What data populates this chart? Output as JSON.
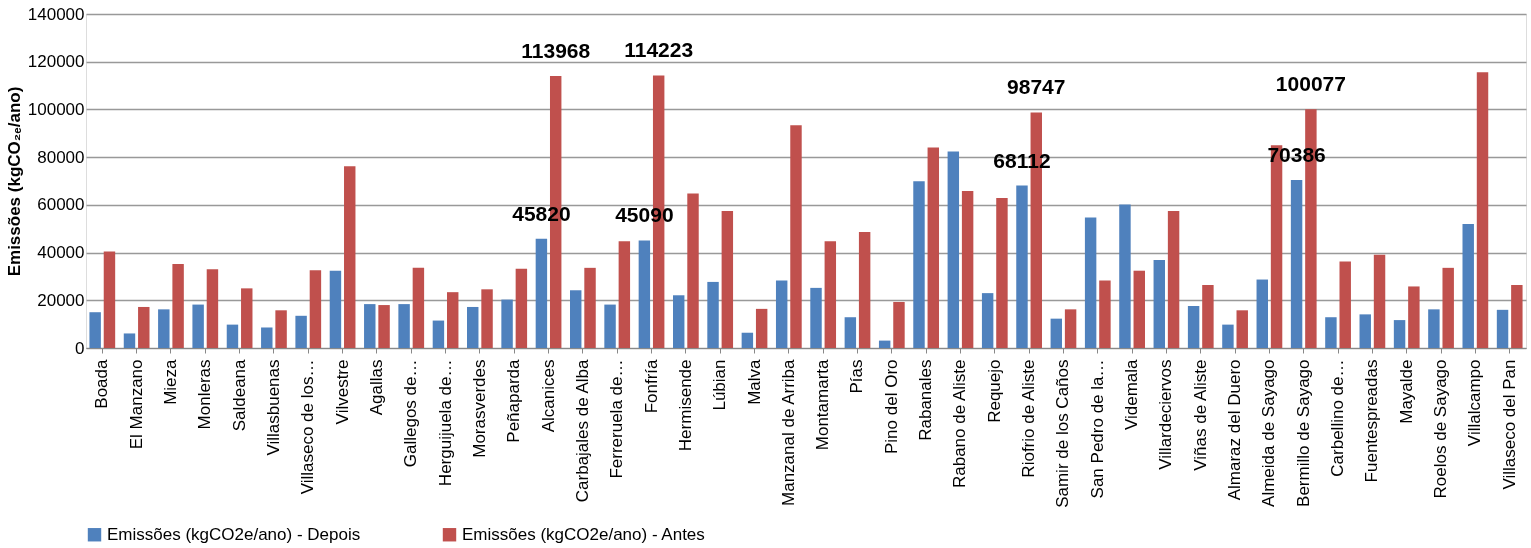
{
  "chart_data": {
    "type": "bar",
    "ylabel": "Emissões (kgCO₂ₑ/ano)",
    "categories": [
      "Boada",
      "El Manzano",
      "Mieza",
      "Monleras",
      "Saldeana",
      "Villasbuenas",
      "Villaseco de los…",
      "Vilvestre",
      "Agallas",
      "Gallegos de…",
      "Herguijuela de…",
      "Morasverdes",
      "Peñaparda",
      "Alcanices",
      "Carbajales de Alba",
      "Ferreruela de…",
      "Fonfría",
      "Hermisende",
      "Lúbian",
      "Malva",
      "Manzanal de Arriba",
      "Montamarta",
      "Pías",
      "Pino del Oro",
      "Rabanales",
      "Rabano de Aliste",
      "Requejo",
      "Riofrio de Aliste",
      "Samir de los Caños",
      "San Pedro de la…",
      "Videmala",
      "Villardeciervos",
      "Viñas de Aliste",
      "Almaraz del Duero",
      "Almeida de Sayago",
      "Bermillo de Sayago",
      "Carbellino de…",
      "Fuentespreadas",
      "Mayalde",
      "Roelos de Sayago",
      "Villalcampo",
      "Villaseco del Pan"
    ],
    "series": [
      {
        "name": "Emissões (kgCO2e/ano) - Depois",
        "color": "#4f81bd",
        "values": [
          15000,
          6100,
          16200,
          18200,
          9800,
          8600,
          13500,
          32400,
          18400,
          18400,
          11500,
          17200,
          20300,
          45820,
          24200,
          18200,
          45090,
          22100,
          27700,
          6400,
          28300,
          25200,
          12900,
          3100,
          69900,
          82400,
          23000,
          68112,
          12300,
          54700,
          60200,
          36900,
          17600,
          9800,
          28700,
          70386,
          12900,
          14100,
          11700,
          16200,
          52000,
          16000
        ],
        "value_labels": [
          null,
          null,
          null,
          null,
          null,
          null,
          null,
          null,
          null,
          null,
          null,
          null,
          null,
          "45820",
          null,
          null,
          "45090",
          null,
          null,
          null,
          null,
          null,
          null,
          null,
          null,
          null,
          null,
          "68112",
          null,
          null,
          null,
          null,
          null,
          null,
          null,
          "70386",
          null,
          null,
          null,
          null,
          null,
          null
        ]
      },
      {
        "name": "Emissões (kgCO2e/ano) - Antes",
        "color": "#c0504d",
        "values": [
          40400,
          17200,
          35200,
          33000,
          25000,
          15800,
          32600,
          76200,
          18000,
          33600,
          23400,
          24600,
          33200,
          113968,
          33600,
          44700,
          114223,
          64800,
          57400,
          16400,
          93400,
          44700,
          48600,
          19300,
          84000,
          65800,
          62900,
          98747,
          16200,
          28300,
          32400,
          57400,
          26400,
          15800,
          85000,
          100077,
          36300,
          39100,
          25800,
          33600,
          115600,
          26400
        ],
        "value_labels": [
          null,
          null,
          null,
          null,
          null,
          null,
          null,
          null,
          null,
          null,
          null,
          null,
          null,
          "113968",
          null,
          null,
          "114223",
          null,
          null,
          null,
          null,
          null,
          null,
          null,
          null,
          null,
          null,
          "98747",
          null,
          null,
          null,
          null,
          null,
          null,
          null,
          "100077",
          null,
          null,
          null,
          null,
          null,
          null
        ]
      }
    ],
    "ylim": [
      0,
      140000
    ],
    "yticks": [
      0,
      20000,
      40000,
      60000,
      80000,
      100000,
      120000,
      140000
    ],
    "grid": "y",
    "legend": "bottom"
  }
}
